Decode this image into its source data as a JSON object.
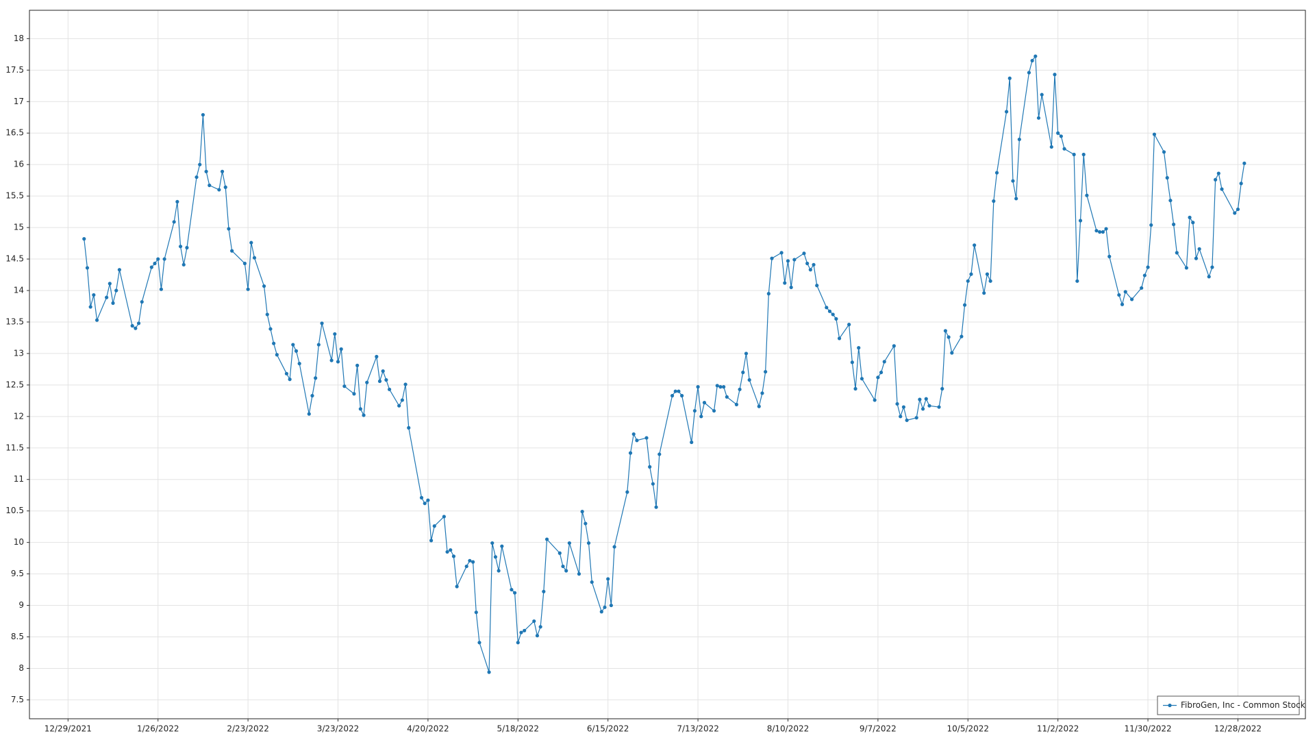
{
  "chart_data": {
    "type": "line",
    "x": [
      "2022-01-03",
      "2022-01-04",
      "2022-01-05",
      "2022-01-06",
      "2022-01-07",
      "2022-01-10",
      "2022-01-11",
      "2022-01-12",
      "2022-01-13",
      "2022-01-14",
      "2022-01-18",
      "2022-01-19",
      "2022-01-20",
      "2022-01-21",
      "2022-01-24",
      "2022-01-25",
      "2022-01-26",
      "2022-01-27",
      "2022-01-28",
      "2022-01-31",
      "2022-02-01",
      "2022-02-02",
      "2022-02-03",
      "2022-02-04",
      "2022-02-07",
      "2022-02-08",
      "2022-02-09",
      "2022-02-10",
      "2022-02-11",
      "2022-02-14",
      "2022-02-15",
      "2022-02-16",
      "2022-02-17",
      "2022-02-18",
      "2022-02-22",
      "2022-02-23",
      "2022-02-24",
      "2022-02-25",
      "2022-02-28",
      "2022-03-01",
      "2022-03-02",
      "2022-03-03",
      "2022-03-04",
      "2022-03-07",
      "2022-03-08",
      "2022-03-09",
      "2022-03-10",
      "2022-03-11",
      "2022-03-14",
      "2022-03-15",
      "2022-03-16",
      "2022-03-17",
      "2022-03-18",
      "2022-03-21",
      "2022-03-22",
      "2022-03-23",
      "2022-03-24",
      "2022-03-25",
      "2022-03-28",
      "2022-03-29",
      "2022-03-30",
      "2022-03-31",
      "2022-04-01",
      "2022-04-04",
      "2022-04-05",
      "2022-04-06",
      "2022-04-07",
      "2022-04-08",
      "2022-04-11",
      "2022-04-12",
      "2022-04-13",
      "2022-04-14",
      "2022-04-18",
      "2022-04-19",
      "2022-04-20",
      "2022-04-21",
      "2022-04-22",
      "2022-04-25",
      "2022-04-26",
      "2022-04-27",
      "2022-04-28",
      "2022-04-29",
      "2022-05-02",
      "2022-05-03",
      "2022-05-04",
      "2022-05-05",
      "2022-05-06",
      "2022-05-09",
      "2022-05-10",
      "2022-05-11",
      "2022-05-12",
      "2022-05-13",
      "2022-05-16",
      "2022-05-17",
      "2022-05-18",
      "2022-05-19",
      "2022-05-20",
      "2022-05-23",
      "2022-05-24",
      "2022-05-25",
      "2022-05-26",
      "2022-05-27",
      "2022-05-31",
      "2022-06-01",
      "2022-06-02",
      "2022-06-03",
      "2022-06-06",
      "2022-06-07",
      "2022-06-08",
      "2022-06-09",
      "2022-06-10",
      "2022-06-13",
      "2022-06-14",
      "2022-06-15",
      "2022-06-16",
      "2022-06-17",
      "2022-06-21",
      "2022-06-22",
      "2022-06-23",
      "2022-06-24",
      "2022-06-27",
      "2022-06-28",
      "2022-06-29",
      "2022-06-30",
      "2022-07-01",
      "2022-07-05",
      "2022-07-06",
      "2022-07-07",
      "2022-07-08",
      "2022-07-11",
      "2022-07-12",
      "2022-07-13",
      "2022-07-14",
      "2022-07-15",
      "2022-07-18",
      "2022-07-19",
      "2022-07-20",
      "2022-07-21",
      "2022-07-22",
      "2022-07-25",
      "2022-07-26",
      "2022-07-27",
      "2022-07-28",
      "2022-07-29",
      "2022-08-01",
      "2022-08-02",
      "2022-08-03",
      "2022-08-04",
      "2022-08-05",
      "2022-08-08",
      "2022-08-09",
      "2022-08-10",
      "2022-08-11",
      "2022-08-12",
      "2022-08-15",
      "2022-08-16",
      "2022-08-17",
      "2022-08-18",
      "2022-08-19",
      "2022-08-22",
      "2022-08-23",
      "2022-08-24",
      "2022-08-25",
      "2022-08-26",
      "2022-08-29",
      "2022-08-30",
      "2022-08-31",
      "2022-09-01",
      "2022-09-02",
      "2022-09-06",
      "2022-09-07",
      "2022-09-08",
      "2022-09-09",
      "2022-09-12",
      "2022-09-13",
      "2022-09-14",
      "2022-09-15",
      "2022-09-16",
      "2022-09-19",
      "2022-09-20",
      "2022-09-21",
      "2022-09-22",
      "2022-09-23",
      "2022-09-26",
      "2022-09-27",
      "2022-09-28",
      "2022-09-29",
      "2022-09-30",
      "2022-10-03",
      "2022-10-04",
      "2022-10-05",
      "2022-10-06",
      "2022-10-07",
      "2022-10-10",
      "2022-10-11",
      "2022-10-12",
      "2022-10-13",
      "2022-10-14",
      "2022-10-17",
      "2022-10-18",
      "2022-10-19",
      "2022-10-20",
      "2022-10-21",
      "2022-10-24",
      "2022-10-25",
      "2022-10-26",
      "2022-10-27",
      "2022-10-28",
      "2022-10-31",
      "2022-11-01",
      "2022-11-02",
      "2022-11-03",
      "2022-11-04",
      "2022-11-07",
      "2022-11-08",
      "2022-11-09",
      "2022-11-10",
      "2022-11-11",
      "2022-11-14",
      "2022-11-15",
      "2022-11-16",
      "2022-11-17",
      "2022-11-18",
      "2022-11-21",
      "2022-11-22",
      "2022-11-23",
      "2022-11-25",
      "2022-11-28",
      "2022-11-29",
      "2022-11-30",
      "2022-12-01",
      "2022-12-02",
      "2022-12-05",
      "2022-12-06",
      "2022-12-07",
      "2022-12-08",
      "2022-12-09",
      "2022-12-12",
      "2022-12-13",
      "2022-12-14",
      "2022-12-15",
      "2022-12-16",
      "2022-12-19",
      "2022-12-20",
      "2022-12-21",
      "2022-12-22",
      "2022-12-23",
      "2022-12-27",
      "2022-12-28",
      "2022-12-29",
      "2022-12-30"
    ],
    "series": [
      {
        "name": "FibroGen, Inc - Common Stock",
        "color": "#1f77b4",
        "values": [
          14.82,
          14.36,
          13.74,
          13.93,
          13.53,
          13.89,
          14.11,
          13.8,
          14.0,
          14.33,
          13.44,
          13.4,
          13.48,
          13.82,
          14.37,
          14.43,
          14.5,
          14.02,
          14.5,
          15.09,
          15.41,
          14.7,
          14.41,
          14.68,
          15.8,
          16.0,
          16.79,
          15.89,
          15.67,
          15.6,
          15.89,
          15.64,
          14.98,
          14.63,
          14.43,
          14.02,
          14.76,
          14.52,
          14.07,
          13.62,
          13.39,
          13.16,
          12.98,
          12.68,
          12.59,
          13.14,
          13.04,
          12.84,
          12.04,
          12.33,
          12.61,
          13.14,
          13.48,
          12.89,
          13.31,
          12.87,
          13.07,
          12.48,
          12.36,
          12.81,
          12.12,
          12.02,
          12.54,
          12.95,
          12.56,
          12.72,
          12.58,
          12.43,
          12.17,
          12.26,
          12.51,
          11.82,
          10.71,
          10.62,
          10.67,
          10.03,
          10.26,
          10.41,
          9.85,
          9.88,
          9.78,
          9.3,
          9.62,
          9.71,
          9.69,
          8.89,
          8.41,
          7.94,
          9.99,
          9.77,
          9.55,
          9.94,
          9.25,
          9.2,
          8.41,
          8.57,
          8.6,
          8.75,
          8.52,
          8.66,
          9.22,
          10.05,
          9.83,
          9.62,
          9.55,
          9.99,
          9.5,
          10.49,
          10.3,
          9.99,
          9.37,
          8.9,
          8.97,
          9.42,
          9.0,
          9.93,
          10.8,
          11.42,
          11.72,
          11.62,
          11.66,
          11.2,
          10.93,
          10.56,
          11.4,
          12.33,
          12.4,
          12.4,
          12.33,
          11.59,
          12.09,
          12.47,
          12.0,
          12.22,
          12.09,
          12.49,
          12.47,
          12.47,
          12.31,
          12.19,
          12.43,
          12.7,
          13.0,
          12.58,
          12.16,
          12.37,
          12.71,
          13.95,
          14.51,
          14.6,
          14.12,
          14.47,
          14.05,
          14.49,
          14.59,
          14.43,
          14.33,
          14.41,
          14.08,
          13.73,
          13.67,
          13.62,
          13.55,
          13.24,
          13.46,
          12.86,
          12.44,
          13.09,
          12.6,
          12.26,
          12.62,
          12.7,
          12.87,
          13.12,
          12.2,
          12.0,
          12.15,
          11.94,
          11.98,
          12.27,
          12.12,
          12.28,
          12.17,
          12.15,
          12.44,
          13.36,
          13.26,
          13.01,
          13.27,
          13.77,
          14.15,
          14.26,
          14.72,
          13.96,
          14.26,
          14.15,
          15.42,
          15.87,
          16.84,
          17.37,
          15.74,
          15.46,
          16.4,
          17.46,
          17.65,
          17.72,
          16.74,
          17.11,
          16.28,
          17.43,
          16.5,
          16.45,
          16.25,
          16.16,
          14.15,
          15.11,
          16.16,
          15.51,
          14.95,
          14.93,
          14.93,
          14.98,
          14.54,
          13.93,
          13.78,
          13.98,
          13.86,
          14.04,
          14.24,
          14.37,
          15.04,
          16.48,
          16.2,
          15.79,
          15.43,
          15.05,
          14.6,
          14.36,
          15.16,
          15.08,
          14.51,
          14.66,
          14.22,
          14.37,
          15.76,
          15.86,
          15.61,
          15.23,
          15.29,
          15.7,
          16.02
        ]
      }
    ],
    "xlim": [
      "2021-12-17",
      "2023-01-18"
    ],
    "xticks": [
      {
        "value": "2021-12-29",
        "label": "12/29/2021"
      },
      {
        "value": "2022-01-26",
        "label": "1/26/2022"
      },
      {
        "value": "2022-02-23",
        "label": "2/23/2022"
      },
      {
        "value": "2022-03-23",
        "label": "3/23/2022"
      },
      {
        "value": "2022-04-20",
        "label": "4/20/2022"
      },
      {
        "value": "2022-05-18",
        "label": "5/18/2022"
      },
      {
        "value": "2022-06-15",
        "label": "6/15/2022"
      },
      {
        "value": "2022-07-13",
        "label": "7/13/2022"
      },
      {
        "value": "2022-08-10",
        "label": "8/10/2022"
      },
      {
        "value": "2022-09-07",
        "label": "9/7/2022"
      },
      {
        "value": "2022-10-05",
        "label": "10/5/2022"
      },
      {
        "value": "2022-11-02",
        "label": "11/2/2022"
      },
      {
        "value": "2022-11-30",
        "label": "11/30/2022"
      },
      {
        "value": "2022-12-28",
        "label": "12/28/2022"
      }
    ],
    "ylim": [
      7.2,
      18.45
    ],
    "yticks": [
      7.5,
      8,
      8.5,
      9,
      9.5,
      10,
      10.5,
      11,
      11.5,
      12,
      12.5,
      13,
      13.5,
      14,
      14.5,
      15,
      15.5,
      16,
      16.5,
      17,
      17.5,
      18
    ],
    "grid": true,
    "legend": "lower right"
  }
}
